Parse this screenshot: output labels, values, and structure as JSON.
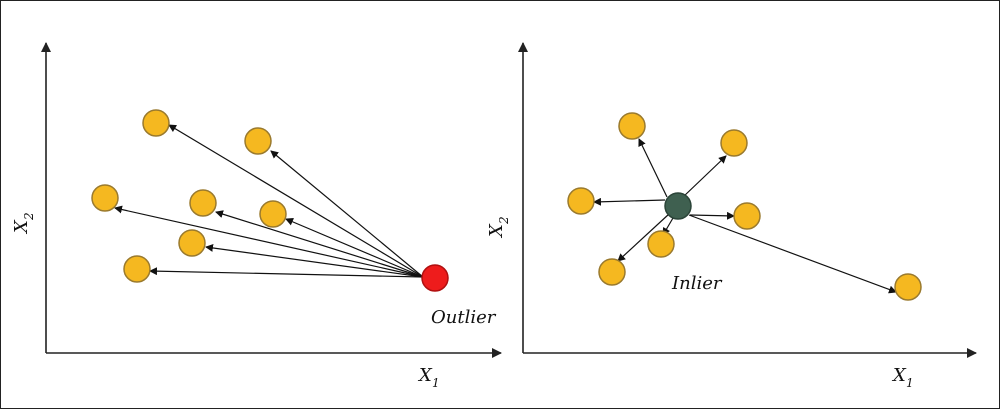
{
  "colors": {
    "neighbor": "#f5b820",
    "outlier": "#ee1c1c",
    "inlier": "#3f6050",
    "ink": "#111111"
  },
  "left_panel": {
    "point_label": "Outlier",
    "x_axis_label": {
      "main": "X",
      "sub": "1"
    },
    "y_axis_label": {
      "main": "X",
      "sub": "2"
    }
  },
  "right_panel": {
    "point_label": "Inlier",
    "x_axis_label": {
      "main": "X",
      "sub": "1"
    },
    "y_axis_label": {
      "main": "X",
      "sub": "2"
    }
  }
}
